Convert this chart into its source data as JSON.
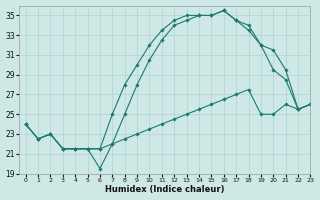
{
  "xlabel": "Humidex (Indice chaleur)",
  "bg_color": "#cde8e5",
  "grid_color": "#afd4d0",
  "line_color": "#1a7a6e",
  "xlim": [
    -0.5,
    23
  ],
  "ylim": [
    19,
    36
  ],
  "xticks": [
    0,
    1,
    2,
    3,
    4,
    5,
    6,
    7,
    8,
    9,
    10,
    11,
    12,
    13,
    14,
    15,
    16,
    17,
    18,
    19,
    20,
    21,
    22,
    23
  ],
  "yticks": [
    19,
    21,
    23,
    25,
    27,
    29,
    31,
    33,
    35
  ],
  "curves": [
    {
      "x": [
        0,
        1,
        2,
        3,
        4,
        5,
        6,
        7,
        8,
        9,
        10,
        11,
        12,
        13,
        14,
        15,
        16,
        17,
        18,
        19,
        20,
        21,
        22,
        23
      ],
      "y": [
        24,
        22.5,
        23,
        21.5,
        21.5,
        21.5,
        19.5,
        22,
        25,
        28,
        30.5,
        32.5,
        34,
        34.5,
        35,
        35,
        35.5,
        34.5,
        34,
        32,
        29.5,
        28.5,
        25.5,
        26
      ]
    },
    {
      "x": [
        0,
        1,
        2,
        3,
        4,
        5,
        6,
        7,
        8,
        9,
        10,
        11,
        12,
        13,
        14,
        15,
        16,
        17,
        18,
        19,
        20,
        21,
        22,
        23
      ],
      "y": [
        24,
        22.5,
        23,
        21.5,
        21.5,
        21.5,
        21.5,
        25,
        28,
        30,
        32,
        33.5,
        34.5,
        35,
        35,
        35,
        35.5,
        34.5,
        33.5,
        32,
        31.5,
        29.5,
        25.5,
        26
      ]
    },
    {
      "x": [
        0,
        1,
        2,
        3,
        4,
        5,
        6,
        7,
        8,
        9,
        10,
        11,
        12,
        13,
        14,
        15,
        16,
        17,
        18,
        19,
        20,
        21,
        22,
        23
      ],
      "y": [
        24,
        22.5,
        23,
        21.5,
        21.5,
        21.5,
        21.5,
        22,
        22.5,
        23,
        23.5,
        24,
        24.5,
        25,
        25.5,
        26,
        26.5,
        27,
        27.5,
        25,
        25,
        26,
        25.5,
        26
      ]
    }
  ]
}
